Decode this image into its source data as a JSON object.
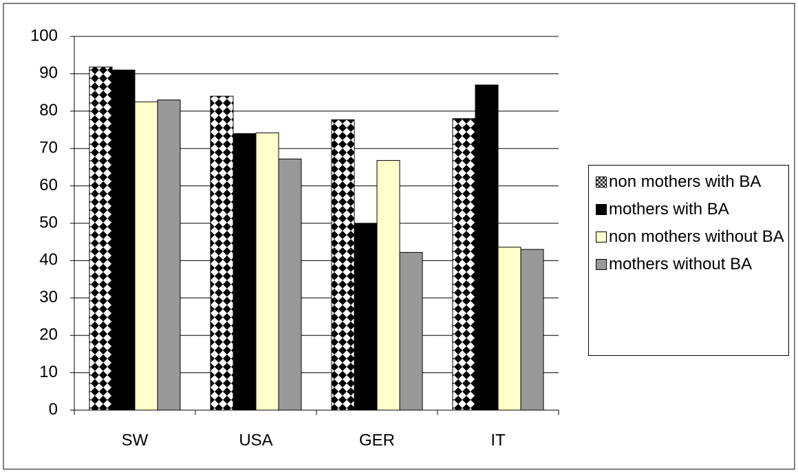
{
  "chart_data": {
    "type": "bar",
    "categories": [
      "SW",
      "USA",
      "GER",
      "IT"
    ],
    "series": [
      {
        "name": "non mothers with BA",
        "color": "#000000",
        "pattern": "checker",
        "values": [
          91.8,
          84,
          77.7,
          78
        ]
      },
      {
        "name": "mothers with BA",
        "color": "#000000",
        "values": [
          91,
          74,
          50,
          87
        ]
      },
      {
        "name": "non mothers without BA",
        "color": "#ffffcc",
        "values": [
          82.5,
          74.2,
          66.8,
          43.6
        ]
      },
      {
        "name": "mothers without BA",
        "color": "#999999",
        "values": [
          83,
          67.2,
          42.2,
          43
        ]
      }
    ],
    "ylim": [
      0,
      100
    ],
    "yticks": [
      0,
      10,
      20,
      30,
      40,
      50,
      60,
      70,
      80,
      90,
      100
    ],
    "grid": true,
    "legend": "right"
  }
}
